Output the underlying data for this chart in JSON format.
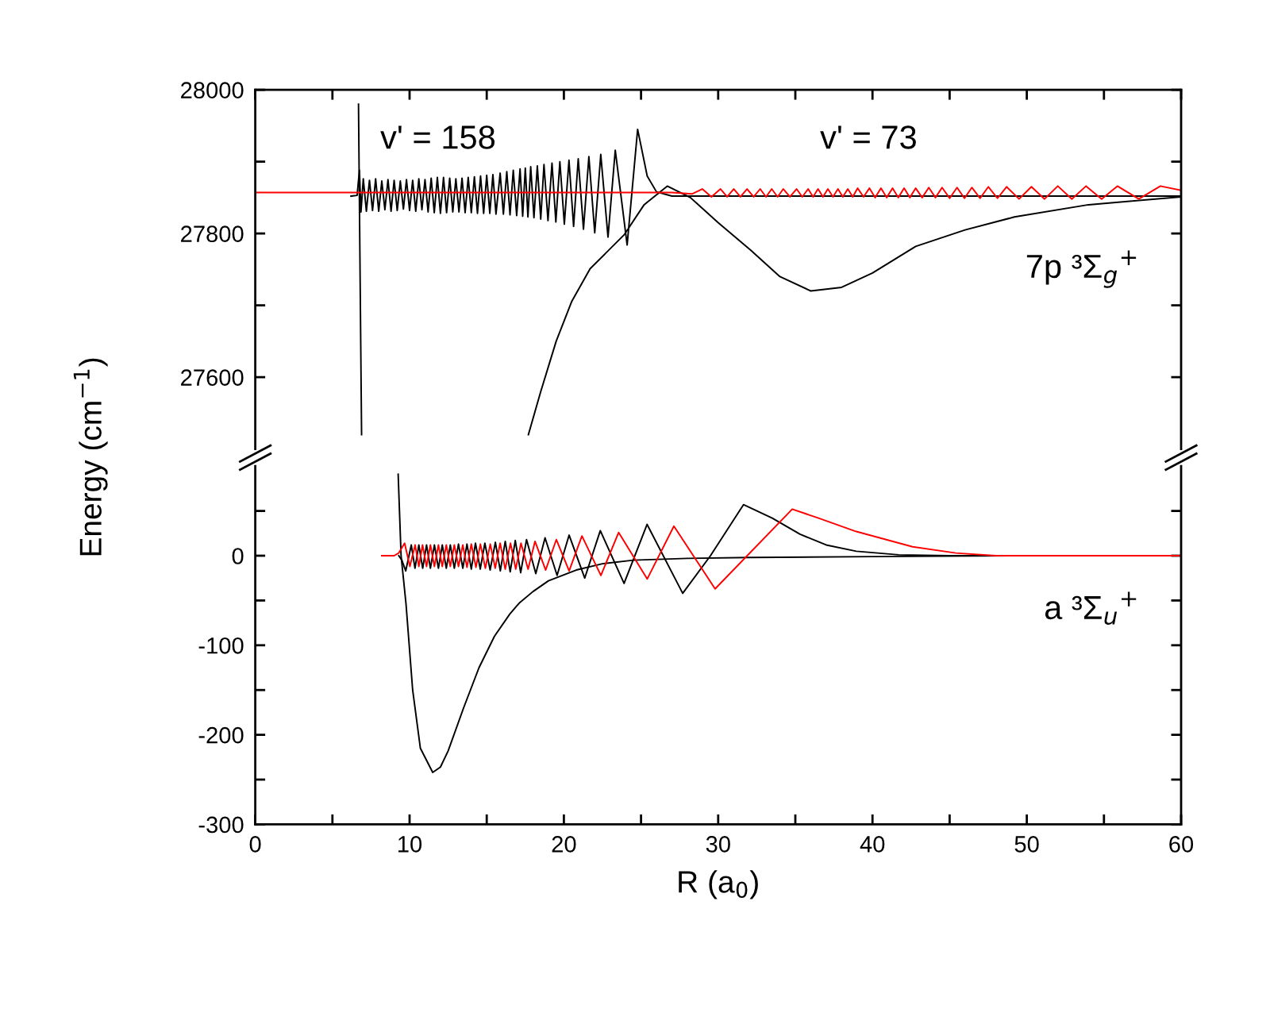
{
  "chart_data": [
    {
      "type": "line",
      "ylabel": "Energy (cm$^{−1}$)",
      "xlim": [
        0,
        60
      ],
      "ylim": [
        27500,
        28000
      ],
      "tick_labels": "y",
      "line_style": "solid",
      "xticks": [
        0,
        {
          "value": 5,
          "label": null
        },
        10,
        {
          "value": 15,
          "label": null
        },
        20,
        {
          "value": 25,
          "label": null
        },
        30,
        {
          "value": 35,
          "label": null
        },
        40,
        {
          "value": 45,
          "label": null
        },
        50,
        {
          "value": 55,
          "label": null
        },
        60
      ],
      "yticks": [
        27600,
        {
          "value": 27700,
          "label": null
        },
        27800,
        {
          "value": 27900,
          "label": null
        },
        28000
      ],
      "annotations": [
        "v' = 158",
        "v' = 73",
        "7p ³Σ$_{g}$$^{+}$"
      ],
      "series": [
        {
          "color": "#000000",
          "x": [
            6.69,
            6.89,
            10,
            17.7,
            18.5,
            19.5,
            20.5,
            21.7,
            23.9,
            25.2,
            26.7,
            28.2,
            30,
            32.1,
            34,
            36,
            38,
            40,
            42.8,
            46,
            49.2,
            54,
            60
          ],
          "values": [
            27980,
            27520,
            null,
            27520,
            27580,
            27650,
            27705,
            27751,
            27798,
            27840,
            27866,
            27850,
            27815,
            27777,
            27740,
            27720,
            27725,
            27745,
            27782,
            27805,
            27823,
            27840,
            27851
          ]
        },
        {
          "color": "#000000",
          "x": [
            6.2,
            6.6,
            6.75,
            6.85,
            7.0,
            7.2,
            7.4,
            7.6,
            7.8,
            8.0,
            8.2,
            8.4,
            8.6,
            8.8,
            9.0,
            9.2,
            9.4,
            9.6,
            9.8,
            10.0,
            10.2,
            10.4,
            10.6,
            10.8,
            11.0,
            11.2,
            11.4,
            11.6,
            11.8,
            12.0,
            12.2,
            12.4,
            12.6,
            12.8,
            13.0,
            13.2,
            13.4,
            13.6,
            13.8,
            14.0,
            14.2,
            14.4,
            14.6,
            14.8,
            15.0,
            15.2,
            15.4,
            15.6,
            15.87,
            16.08,
            16.3,
            16.51,
            16.72,
            16.94,
            17.16,
            17.33,
            17.5,
            17.67,
            17.85,
            18.06,
            18.28,
            18.5,
            18.71,
            18.97,
            19.23,
            19.48,
            19.74,
            20.03,
            20.33,
            20.63,
            20.93,
            21.27,
            21.62,
            22.0,
            22.39,
            22.86,
            23.33,
            24.1,
            24.78,
            25.4,
            26.0,
            27.0,
            60
          ],
          "values": [
            27852,
            27853,
            27888,
            27830,
            27876,
            27831,
            27874,
            27832,
            27876,
            27831,
            27873,
            27833,
            27875,
            27831,
            27874,
            27832,
            27873,
            27834,
            27875,
            27832,
            27874,
            27831,
            27876,
            27833,
            27875,
            27830,
            27877,
            27829,
            27878,
            27828,
            27878,
            27829,
            27877,
            27830,
            27876,
            27830,
            27877,
            27829,
            27878,
            27829,
            27879,
            27828,
            27880,
            27828,
            27881,
            27828,
            27882,
            27827,
            27884,
            27827,
            27886,
            27826,
            27888,
            27825,
            27890,
            27824,
            27891,
            27823,
            27893,
            27822,
            27894,
            27820,
            27896,
            27818,
            27898,
            27816,
            27900,
            27813,
            27902,
            27810,
            27904,
            27806,
            27907,
            27801,
            27910,
            27795,
            27916,
            27784,
            27945,
            27880,
            27858,
            27852,
            27852
          ]
        },
        {
          "color": "#ff0000",
          "x": [
            0,
            27.0,
            28.3,
            28.97,
            29.56,
            30.15,
            30.58,
            31.01,
            31.44,
            31.87,
            32.3,
            32.72,
            33.1,
            33.47,
            33.85,
            34.22,
            34.65,
            35.08,
            35.45,
            35.83,
            36.15,
            36.47,
            36.79,
            37.11,
            37.44,
            37.76,
            38.08,
            38.4,
            38.72,
            39.04,
            39.42,
            39.8,
            40.17,
            40.55,
            40.92,
            41.3,
            41.67,
            42.05,
            42.42,
            42.8,
            43.22,
            43.65,
            44.08,
            44.51,
            45.0,
            45.48,
            45.96,
            46.44,
            46.97,
            47.51,
            48.1,
            48.69,
            49.5,
            50.3,
            51.15,
            52.01,
            52.92,
            53.84,
            54.85,
            55.87,
            57.26,
            58.66,
            60
          ],
          "values": [
            27857,
            27857,
            27855,
            27862,
            27851,
            27862,
            27851,
            27862,
            27851,
            27862,
            27851,
            27862,
            27851,
            27862,
            27851,
            27862,
            27851,
            27862,
            27851,
            27862,
            27851,
            27862,
            27851,
            27862,
            27851,
            27862,
            27851,
            27862,
            27851,
            27863,
            27851,
            27863,
            27850,
            27863,
            27850,
            27863,
            27850,
            27863,
            27850,
            27863,
            27850,
            27864,
            27850,
            27864,
            27849,
            27864,
            27849,
            27864,
            27849,
            27865,
            27849,
            27865,
            27848,
            27865,
            27848,
            27866,
            27848,
            27866,
            27848,
            27866,
            27848,
            27866,
            27860
          ]
        }
      ]
    },
    {
      "type": "line",
      "xlabel": "R (a$_{0}$)",
      "xlim": [
        0,
        60
      ],
      "ylim": [
        -300,
        100
      ],
      "line_style": "solid",
      "xticks": [
        0,
        {
          "value": 5,
          "label": null
        },
        10,
        {
          "value": 15,
          "label": null
        },
        20,
        {
          "value": 25,
          "label": null
        },
        30,
        {
          "value": 35,
          "label": null
        },
        40,
        {
          "value": 45,
          "label": null
        },
        50,
        {
          "value": 55,
          "label": null
        },
        60
      ],
      "yticks": [
        -300,
        {
          "value": -250,
          "label": null
        },
        -200,
        {
          "value": -150,
          "label": null
        },
        -100,
        {
          "value": -50,
          "label": null
        },
        0,
        {
          "value": 50,
          "label": null
        }
      ],
      "annotations": [
        "a ³Σ$_{u}$$^{+}$"
      ],
      "series": [
        {
          "color": "#000000",
          "x": [
            9.26,
            9.45,
            9.77,
            10.2,
            10.7,
            11.5,
            12.0,
            12.5,
            13.5,
            14.5,
            15.5,
            16.5,
            17.1,
            18.0,
            19.0,
            20.8,
            22.5,
            24.5,
            28,
            32,
            40,
            50,
            60
          ],
          "values": [
            91,
            0,
            -54,
            -150,
            -215,
            -242,
            -236,
            -218,
            -170,
            -125,
            -90,
            -65,
            -53,
            -40,
            -28,
            -16,
            -9,
            -5,
            -3,
            -2,
            -1,
            0,
            0
          ]
        },
        {
          "color": "#000000",
          "x": [
            9.3,
            9.5,
            9.75,
            10.11,
            10.35,
            10.6,
            10.85,
            11.1,
            11.35,
            11.61,
            11.87,
            12.12,
            12.38,
            12.64,
            12.9,
            13.17,
            13.45,
            13.72,
            14.0,
            14.27,
            14.58,
            14.88,
            15.22,
            15.56,
            15.88,
            16.2,
            16.52,
            16.85,
            17.2,
            17.58,
            18.18,
            18.78,
            19.56,
            20.34,
            21.35,
            22.36,
            23.9,
            25.39,
            27.7,
            29.5,
            31.64,
            33.5,
            35.3,
            37,
            38.95,
            41.7,
            45,
            60
          ],
          "values": [
            0,
            -5,
            -17,
            12,
            -14,
            12,
            -14,
            12,
            -14,
            12,
            -14,
            12,
            -14,
            12,
            -14,
            13,
            -14,
            13,
            -15,
            14,
            -15,
            14,
            -16,
            15,
            -17,
            16,
            -18,
            17,
            -19,
            18,
            -20,
            20,
            -22,
            23,
            -25,
            28,
            -31,
            35,
            -42,
            0,
            57,
            42,
            24,
            12,
            5,
            1,
            0,
            0
          ]
        },
        {
          "color": "#ff0000",
          "x": [
            8.2,
            9.0,
            9.3,
            9.68,
            10.02,
            10.36,
            10.6,
            10.84,
            11.1,
            11.35,
            11.61,
            11.87,
            12.12,
            12.38,
            12.64,
            12.9,
            13.17,
            13.45,
            13.72,
            14.0,
            14.3,
            14.59,
            14.91,
            15.23,
            15.55,
            15.87,
            16.2,
            16.54,
            16.88,
            17.22,
            17.68,
            18.13,
            18.82,
            19.51,
            20.34,
            21.17,
            22.4,
            23.55,
            25.4,
            27.13,
            29.8,
            34.8,
            36.5,
            38.95,
            42.6,
            45.4,
            48,
            60
          ],
          "values": [
            0,
            0,
            3,
            14,
            -12,
            12,
            -12,
            12,
            -12,
            12,
            -12,
            12,
            -12,
            12,
            -12,
            12,
            -12,
            12,
            -13,
            13,
            -13,
            13,
            -14,
            13,
            -14,
            14,
            -15,
            14,
            -15,
            14,
            -15,
            16,
            -16,
            18,
            -17,
            22,
            -22,
            26,
            -26,
            33,
            -37,
            52,
            42,
            27,
            10,
            3,
            0,
            0
          ]
        }
      ]
    }
  ]
}
